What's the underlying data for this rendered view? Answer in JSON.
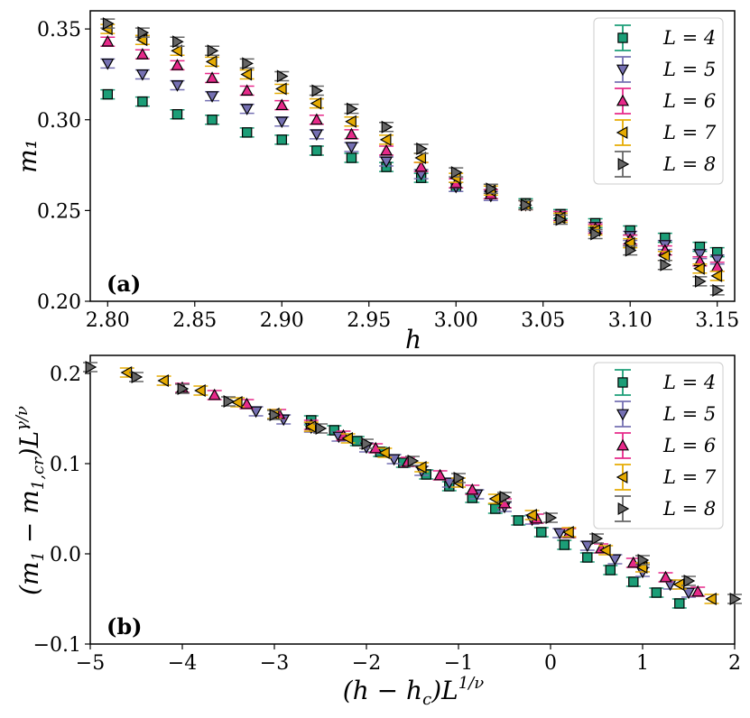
{
  "figure_title": "",
  "colors": {
    "L4": "#1b9e77",
    "L5": "#7570b3",
    "L6": "#e7298a",
    "L7": "#e6ab02",
    "L8": "#666666"
  },
  "chart_data": [
    {
      "type": "scatter",
      "panel_label": "(a)",
      "xlabel": "h",
      "ylabel": "m₁",
      "xlim": [
        2.79,
        3.16
      ],
      "ylim": [
        0.2,
        0.36
      ],
      "xticks": [
        2.8,
        2.85,
        2.9,
        2.95,
        3.0,
        3.05,
        3.1,
        3.15
      ],
      "xtick_labels": [
        "2.80",
        "2.85",
        "2.90",
        "2.95",
        "3.00",
        "3.05",
        "3.10",
        "3.15"
      ],
      "yticks": [
        0.2,
        0.25,
        0.3,
        0.35
      ],
      "ytick_labels": [
        "0.20",
        "0.25",
        "0.30",
        "0.35"
      ],
      "legend_position": "top-right",
      "series": [
        {
          "name": "L = 4",
          "marker": "square",
          "color": "#1b9e77",
          "x": [
            2.8,
            2.82,
            2.84,
            2.86,
            2.88,
            2.9,
            2.92,
            2.94,
            2.96,
            2.98,
            3.0,
            3.02,
            3.04,
            3.06,
            3.08,
            3.1,
            3.12,
            3.14,
            3.15
          ],
          "y": [
            0.314,
            0.31,
            0.303,
            0.3,
            0.293,
            0.289,
            0.283,
            0.279,
            0.274,
            0.268,
            0.263,
            0.259,
            0.254,
            0.248,
            0.243,
            0.239,
            0.235,
            0.23,
            0.227
          ]
        },
        {
          "name": "L = 5",
          "marker": "triangle-down",
          "color": "#7570b3",
          "x": [
            2.8,
            2.82,
            2.84,
            2.86,
            2.88,
            2.9,
            2.92,
            2.94,
            2.96,
            2.98,
            3.0,
            3.02,
            3.04,
            3.06,
            3.08,
            3.1,
            3.12,
            3.14,
            3.15
          ],
          "y": [
            0.331,
            0.325,
            0.319,
            0.313,
            0.306,
            0.299,
            0.292,
            0.285,
            0.277,
            0.27,
            0.263,
            0.258,
            0.253,
            0.247,
            0.241,
            0.236,
            0.231,
            0.226,
            0.223
          ]
        },
        {
          "name": "L = 6",
          "marker": "triangle-up",
          "color": "#e7298a",
          "x": [
            2.8,
            2.82,
            2.84,
            2.86,
            2.88,
            2.9,
            2.92,
            2.94,
            2.96,
            2.98,
            3.0,
            3.02,
            3.04,
            3.06,
            3.08,
            3.1,
            3.12,
            3.14,
            3.15
          ],
          "y": [
            0.343,
            0.336,
            0.33,
            0.323,
            0.316,
            0.308,
            0.3,
            0.292,
            0.283,
            0.274,
            0.265,
            0.259,
            0.253,
            0.247,
            0.24,
            0.234,
            0.228,
            0.222,
            0.219
          ]
        },
        {
          "name": "L = 7",
          "marker": "triangle-left",
          "color": "#e6ab02",
          "x": [
            2.8,
            2.82,
            2.84,
            2.86,
            2.88,
            2.9,
            2.92,
            2.94,
            2.96,
            2.98,
            3.0,
            3.02,
            3.04,
            3.06,
            3.08,
            3.1,
            3.12,
            3.14,
            3.15
          ],
          "y": [
            0.35,
            0.344,
            0.338,
            0.332,
            0.325,
            0.317,
            0.309,
            0.299,
            0.289,
            0.279,
            0.268,
            0.261,
            0.253,
            0.246,
            0.239,
            0.232,
            0.225,
            0.218,
            0.214
          ]
        },
        {
          "name": "L = 8",
          "marker": "triangle-right",
          "color": "#666666",
          "x": [
            2.8,
            2.82,
            2.84,
            2.86,
            2.88,
            2.9,
            2.92,
            2.94,
            2.96,
            2.98,
            3.0,
            3.02,
            3.04,
            3.06,
            3.08,
            3.1,
            3.12,
            3.14,
            3.15
          ],
          "y": [
            0.353,
            0.348,
            0.343,
            0.338,
            0.331,
            0.324,
            0.316,
            0.306,
            0.296,
            0.284,
            0.271,
            0.262,
            0.253,
            0.245,
            0.237,
            0.228,
            0.22,
            0.211,
            0.206
          ]
        }
      ]
    },
    {
      "type": "scatter",
      "panel_label": "(b)",
      "xlabel": "(h − h_c) L^{1/ν}",
      "ylabel": "(m₁ − m_{1,cr}) L^{γ/ν}",
      "xlim": [
        -5,
        2
      ],
      "ylim": [
        -0.1,
        0.22
      ],
      "xticks": [
        -5,
        -4,
        -3,
        -2,
        -1,
        0,
        1,
        2
      ],
      "xtick_labels": [
        "−5",
        "−4",
        "−3",
        "−2",
        "−1",
        "0",
        "1",
        "2"
      ],
      "yticks": [
        -0.1,
        0.0,
        0.1,
        0.2
      ],
      "ytick_labels": [
        "−0.1",
        "0.0",
        "0.1",
        "0.2"
      ],
      "legend_position": "top-right",
      "series": [
        {
          "name": "L = 4",
          "marker": "square",
          "color": "#1b9e77",
          "x": [
            -2.6,
            -2.35,
            -2.1,
            -1.85,
            -1.6,
            -1.35,
            -1.1,
            -0.85,
            -0.6,
            -0.35,
            -0.1,
            0.15,
            0.4,
            0.65,
            0.9,
            1.15,
            1.4
          ],
          "y": [
            0.148,
            0.137,
            0.125,
            0.113,
            0.101,
            0.088,
            0.075,
            0.062,
            0.05,
            0.037,
            0.024,
            0.01,
            -0.004,
            -0.018,
            -0.031,
            -0.043,
            -0.055
          ]
        },
        {
          "name": "L = 5",
          "marker": "triangle-down",
          "color": "#7570b3",
          "x": [
            -3.2,
            -2.9,
            -2.6,
            -2.3,
            -2.0,
            -1.7,
            -1.4,
            -1.1,
            -0.8,
            -0.5,
            -0.2,
            0.1,
            0.4,
            0.7,
            1.0,
            1.3,
            1.5
          ],
          "y": [
            0.158,
            0.149,
            0.14,
            0.13,
            0.118,
            0.105,
            0.092,
            0.079,
            0.066,
            0.052,
            0.038,
            0.023,
            0.009,
            -0.006,
            -0.02,
            -0.034,
            -0.043
          ]
        },
        {
          "name": "L = 6",
          "marker": "triangle-up",
          "color": "#e7298a",
          "x": [
            -4.0,
            -3.65,
            -3.3,
            -2.95,
            -2.6,
            -2.25,
            -1.9,
            -1.55,
            -1.2,
            -0.85,
            -0.5,
            -0.15,
            0.2,
            0.55,
            0.9,
            1.25,
            1.6
          ],
          "y": [
            0.184,
            0.176,
            0.166,
            0.155,
            0.143,
            0.131,
            0.117,
            0.102,
            0.087,
            0.071,
            0.056,
            0.039,
            0.023,
            0.006,
            -0.01,
            -0.026,
            -0.042
          ]
        },
        {
          "name": "L = 7",
          "marker": "triangle-left",
          "color": "#e6ab02",
          "x": [
            -4.6,
            -4.2,
            -3.8,
            -3.4,
            -3.0,
            -2.6,
            -2.2,
            -1.8,
            -1.4,
            -1.0,
            -0.6,
            -0.2,
            0.2,
            0.6,
            1.0,
            1.4,
            1.75
          ],
          "y": [
            0.201,
            0.192,
            0.181,
            0.168,
            0.155,
            0.141,
            0.128,
            0.112,
            0.096,
            0.079,
            0.061,
            0.043,
            0.024,
            0.004,
            -0.015,
            -0.034,
            -0.05
          ]
        },
        {
          "name": "L = 8",
          "marker": "triangle-right",
          "color": "#666666",
          "x": [
            -5.0,
            -4.5,
            -4.0,
            -3.5,
            -3.0,
            -2.5,
            -2.0,
            -1.5,
            -1.0,
            -0.5,
            0.0,
            0.5,
            1.0,
            1.5,
            2.0
          ],
          "y": [
            0.207,
            0.196,
            0.183,
            0.169,
            0.154,
            0.139,
            0.122,
            0.103,
            0.084,
            0.063,
            0.04,
            0.017,
            -0.007,
            -0.03,
            -0.05
          ]
        }
      ]
    }
  ]
}
